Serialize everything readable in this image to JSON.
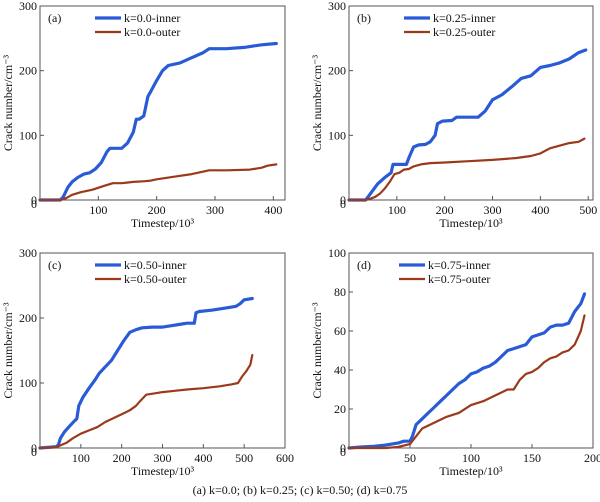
{
  "caption": "(a) k=0.0; (b) k=0.25; (c) k=0.50; (d) k=0.75",
  "colors": {
    "inner": "#2a5bd7",
    "outer": "#9b3a1a",
    "axis": "#555555"
  },
  "chart_data": [
    {
      "type": "line",
      "panel_label": "(a)",
      "xlabel": "Timestep/10³",
      "ylabel": "Crack number/cm⁻³",
      "xlim": [
        0,
        420
      ],
      "ylim": [
        0,
        300
      ],
      "xticks": [
        100,
        200,
        300,
        400
      ],
      "yticks": [
        0,
        100,
        200,
        300
      ],
      "legend_position": "top-left",
      "series": [
        {
          "name": "k=0.0-inner",
          "color_key": "inner",
          "x": [
            0,
            35,
            40,
            48,
            55,
            65,
            75,
            85,
            95,
            105,
            115,
            120,
            130,
            140,
            150,
            160,
            165,
            170,
            178,
            185,
            190,
            200,
            210,
            220,
            240,
            260,
            280,
            290,
            320,
            350,
            380,
            405
          ],
          "y": [
            0,
            0,
            5,
            20,
            28,
            35,
            40,
            42,
            48,
            58,
            75,
            80,
            80,
            80,
            88,
            105,
            125,
            125,
            130,
            160,
            168,
            185,
            200,
            208,
            212,
            220,
            228,
            234,
            234,
            236,
            240,
            242
          ]
        },
        {
          "name": "k=0.0-outer",
          "color_key": "outer",
          "x": [
            0,
            35,
            45,
            55,
            70,
            90,
            110,
            125,
            140,
            160,
            180,
            190,
            200,
            230,
            260,
            290,
            320,
            360,
            380,
            390,
            405
          ],
          "y": [
            0,
            0,
            3,
            8,
            12,
            16,
            22,
            26,
            26,
            28,
            29,
            30,
            32,
            36,
            40,
            46,
            46,
            47,
            50,
            53,
            55
          ]
        }
      ]
    },
    {
      "type": "line",
      "panel_label": "(b)",
      "xlabel": "Timestep/10³",
      "ylabel": "Crack number/cm⁻³",
      "xlim": [
        0,
        510
      ],
      "ylim": [
        0,
        300
      ],
      "xticks": [
        100,
        200,
        300,
        400,
        500
      ],
      "yticks": [
        0,
        100,
        200,
        300
      ],
      "legend_position": "top-center",
      "series": [
        {
          "name": "k=0.25-inner",
          "color_key": "inner",
          "x": [
            0,
            35,
            40,
            50,
            60,
            75,
            88,
            92,
            100,
            120,
            125,
            135,
            145,
            160,
            170,
            180,
            185,
            195,
            215,
            225,
            250,
            270,
            285,
            300,
            320,
            340,
            360,
            380,
            400,
            420,
            440,
            460,
            480,
            495
          ],
          "y": [
            0,
            0,
            5,
            15,
            25,
            35,
            42,
            55,
            55,
            55,
            65,
            82,
            85,
            86,
            90,
            100,
            118,
            122,
            123,
            128,
            128,
            128,
            138,
            155,
            163,
            175,
            188,
            192,
            205,
            208,
            212,
            218,
            228,
            232
          ]
        },
        {
          "name": "k=0.25-outer",
          "color_key": "outer",
          "x": [
            0,
            35,
            45,
            55,
            65,
            75,
            85,
            95,
            105,
            115,
            125,
            135,
            150,
            170,
            200,
            250,
            300,
            350,
            380,
            400,
            420,
            440,
            460,
            480,
            492
          ],
          "y": [
            0,
            0,
            2,
            5,
            10,
            18,
            28,
            40,
            42,
            47,
            48,
            52,
            55,
            57,
            58,
            60,
            62,
            65,
            68,
            72,
            80,
            84,
            88,
            90,
            95
          ]
        }
      ]
    },
    {
      "type": "line",
      "panel_label": "(c)",
      "xlabel": "Timestep/10³",
      "ylabel": "Crack number/cm⁻³",
      "xlim": [
        0,
        600
      ],
      "ylim": [
        0,
        300
      ],
      "xticks": [
        100,
        200,
        300,
        400,
        500,
        600
      ],
      "yticks": [
        0,
        100,
        200,
        300
      ],
      "legend_position": "top-center",
      "series": [
        {
          "name": "k=0.50-inner",
          "color_key": "inner",
          "x": [
            0,
            40,
            45,
            50,
            60,
            70,
            85,
            90,
            95,
            105,
            120,
            135,
            145,
            160,
            175,
            190,
            205,
            220,
            235,
            250,
            275,
            300,
            320,
            340,
            360,
            378,
            382,
            390,
            420,
            450,
            480,
            490,
            500,
            520
          ],
          "y": [
            0,
            2,
            5,
            15,
            25,
            32,
            42,
            45,
            65,
            78,
            92,
            105,
            115,
            125,
            135,
            150,
            165,
            178,
            182,
            185,
            186,
            186,
            188,
            190,
            192,
            192,
            208,
            210,
            212,
            215,
            218,
            222,
            228,
            230
          ]
        },
        {
          "name": "k=0.50-outer",
          "color_key": "outer",
          "x": [
            0,
            40,
            50,
            65,
            80,
            100,
            120,
            140,
            160,
            180,
            200,
            220,
            235,
            245,
            260,
            280,
            300,
            330,
            360,
            400,
            440,
            470,
            485,
            495,
            505,
            515,
            520
          ],
          "y": [
            0,
            1,
            4,
            8,
            15,
            22,
            27,
            32,
            40,
            46,
            52,
            58,
            65,
            72,
            82,
            84,
            86,
            88,
            90,
            92,
            95,
            98,
            100,
            110,
            118,
            128,
            143
          ]
        }
      ]
    },
    {
      "type": "line",
      "panel_label": "(d)",
      "xlabel": "Timestep/10³",
      "ylabel": "Crack number/cm⁻³",
      "xlim": [
        0,
        200
      ],
      "ylim": [
        0,
        100
      ],
      "xticks": [
        50,
        100,
        150,
        200
      ],
      "yticks": [
        0,
        20,
        40,
        60,
        80,
        100
      ],
      "legend_position": "top-center",
      "series": [
        {
          "name": "k=0.75-inner",
          "color_key": "inner",
          "x": [
            0,
            10,
            20,
            30,
            40,
            45,
            50,
            52,
            55,
            60,
            65,
            70,
            75,
            80,
            85,
            90,
            95,
            100,
            105,
            110,
            115,
            120,
            125,
            130,
            135,
            140,
            145,
            150,
            155,
            160,
            165,
            170,
            175,
            180,
            185,
            190,
            193
          ],
          "y": [
            0,
            0.5,
            0.8,
            1.5,
            2.5,
            3.5,
            3.5,
            6,
            12,
            15,
            18,
            21,
            24,
            27,
            30,
            33,
            35,
            38,
            39,
            41,
            42,
            44,
            47,
            50,
            51,
            52,
            53,
            57,
            58,
            59,
            62,
            63,
            63,
            64,
            70,
            74,
            79
          ]
        },
        {
          "name": "k=0.75-outer",
          "color_key": "outer",
          "x": [
            0,
            30,
            40,
            50,
            55,
            60,
            70,
            80,
            90,
            100,
            110,
            120,
            130,
            135,
            140,
            145,
            150,
            155,
            160,
            165,
            170,
            175,
            180,
            185,
            190,
            193
          ],
          "y": [
            0,
            0,
            0.5,
            2,
            6,
            10,
            13,
            16,
            18,
            22,
            24,
            27,
            30,
            30,
            35,
            38,
            39,
            41,
            44,
            46,
            47,
            49,
            50,
            53,
            60,
            68
          ]
        }
      ]
    }
  ]
}
